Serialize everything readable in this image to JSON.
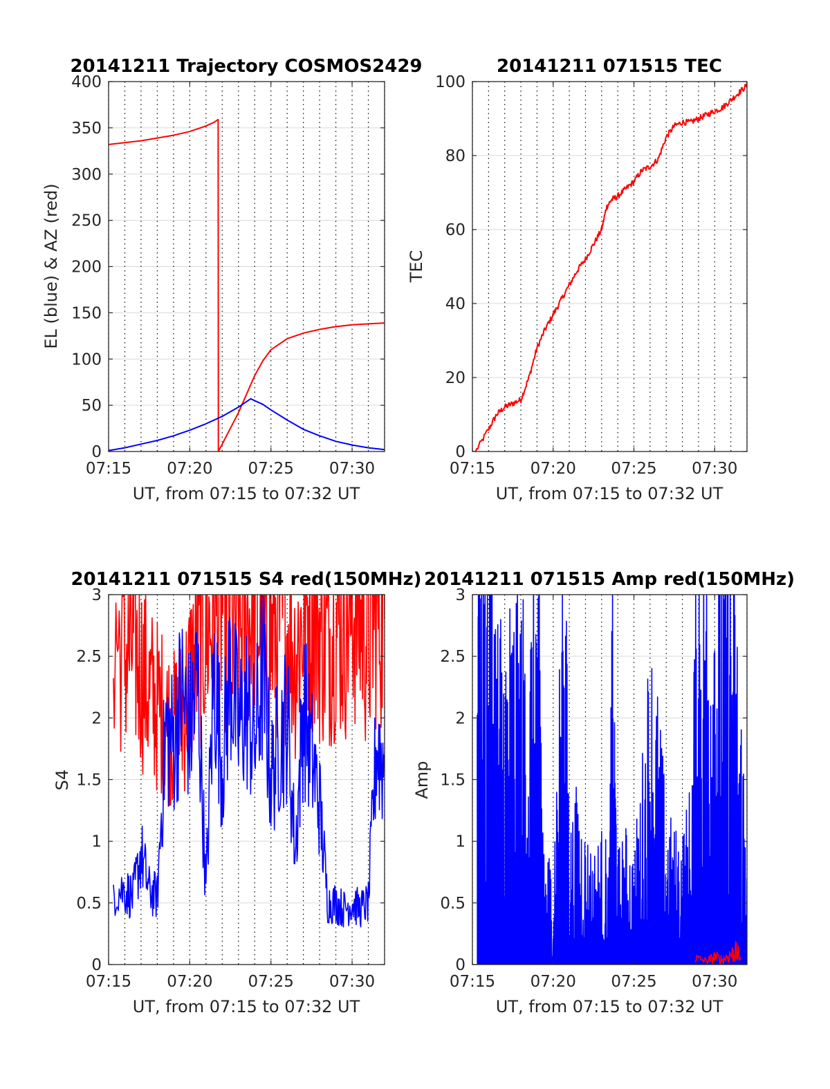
{
  "figure": {
    "background": "#ffffff",
    "grid_color": "#d9d9d9",
    "dotted_grid_color": "#000000"
  },
  "chart_data": [
    {
      "type": "line",
      "title": "20141211 Trajectory COSMOS2429",
      "xlabel": "UT, from 07:15 to 07:32 UT",
      "ylabel": "EL (blue) & AZ (red)",
      "xlim": [
        "07:15",
        "07:32"
      ],
      "ylim": [
        0,
        400
      ],
      "x_ticks": [
        "07:15",
        "07:20",
        "07:25",
        "07:30"
      ],
      "y_ticks": [
        "0",
        "50",
        "100",
        "150",
        "200",
        "250",
        "300",
        "350",
        "400"
      ],
      "grid": true,
      "series": [
        {
          "color": "#ff0000",
          "x": [
            "07:15",
            "07:16",
            "07:17",
            "07:18",
            "07:19",
            "07:20",
            "07:21",
            "07:21.5",
            "07:21.75",
            "07:21.76",
            "07:22",
            "07:22.5",
            "07:23",
            "07:23.5",
            "07:24",
            "07:24.5",
            "07:25",
            "07:26",
            "07:27",
            "07:28",
            "07:29",
            "07:30",
            "07:31",
            "07:32"
          ],
          "y": [
            332,
            334,
            336,
            339,
            342,
            346,
            352,
            356,
            359,
            0,
            8,
            25,
            42,
            62,
            82,
            98,
            110,
            122,
            128,
            132,
            135,
            137,
            138,
            139
          ]
        },
        {
          "color": "#0000ff",
          "x": [
            "07:15",
            "07:16",
            "07:17",
            "07:18",
            "07:19",
            "07:20",
            "07:21",
            "07:22",
            "07:23",
            "07:23.75",
            "07:24.5",
            "07:25",
            "07:26",
            "07:27",
            "07:28",
            "07:29",
            "07:30",
            "07:31",
            "07:32"
          ],
          "y": [
            1,
            4,
            8,
            12,
            17,
            23,
            30,
            38,
            48,
            57,
            51,
            45,
            34,
            24,
            17,
            11,
            7,
            4,
            2
          ]
        }
      ]
    },
    {
      "type": "line",
      "title": "20141211 071515 TEC",
      "xlabel": "UT, from 07:15 to 07:32 UT",
      "ylabel": "TEC",
      "xlim": [
        "07:15",
        "07:32"
      ],
      "ylim": [
        0,
        100
      ],
      "x_ticks": [
        "07:15",
        "07:20",
        "07:25",
        "07:30"
      ],
      "y_ticks": [
        "0",
        "20",
        "40",
        "60",
        "80",
        "100"
      ],
      "grid": true,
      "series": [
        {
          "color": "#ff0000",
          "x": [
            "07:15.2",
            "07:16",
            "07:16.5",
            "07:17",
            "07:17.5",
            "07:18",
            "07:18.5",
            "07:19",
            "07:19.5",
            "07:20",
            "07:20.5",
            "07:21",
            "07:21.5",
            "07:22",
            "07:22.5",
            "07:23",
            "07:23.3",
            "07:23.6",
            "07:24",
            "07:24.5",
            "07:25",
            "07:25.5",
            "07:26",
            "07:26.5",
            "07:27",
            "07:27.5",
            "07:28",
            "07:28.5",
            "07:29",
            "07:29.5",
            "07:30",
            "07:30.5",
            "07:31",
            "07:31.5",
            "07:32"
          ],
          "y": [
            0,
            6,
            10,
            12,
            13,
            14,
            20,
            28,
            33,
            37,
            41,
            45,
            49,
            52,
            56,
            60,
            66,
            68,
            69,
            71,
            73,
            76,
            77,
            79,
            85,
            88,
            89,
            89,
            90,
            91,
            92,
            93,
            95,
            97,
            99
          ]
        }
      ]
    },
    {
      "type": "line",
      "title": "20141211 071515 S4 red(150MHz)",
      "xlabel": "UT, from 07:15 to 07:32 UT",
      "ylabel": "S4",
      "xlim": [
        "07:15",
        "07:32"
      ],
      "ylim": [
        0,
        3
      ],
      "x_ticks": [
        "07:15",
        "07:20",
        "07:25",
        "07:30"
      ],
      "y_ticks": [
        "0",
        "0.5",
        "1",
        "1.5",
        "2",
        "2.5",
        "3"
      ],
      "grid": true,
      "series": [
        {
          "color": "#ff0000",
          "x": [
            "07:15.3",
            "07:16",
            "07:16.5",
            "07:17",
            "07:17.5",
            "07:18",
            "07:18.5",
            "07:19",
            "07:19.5",
            "07:20",
            "07:20.5",
            "07:21",
            "07:21.5",
            "07:22",
            "07:22.5",
            "07:23",
            "07:23.5",
            "07:24",
            "07:24.5",
            "07:25",
            "07:25.5",
            "07:26",
            "07:26.5",
            "07:27",
            "07:27.5",
            "07:28",
            "07:28.5",
            "07:29",
            "07:29.5",
            "07:30",
            "07:30.5",
            "07:31",
            "07:31.5",
            "07:32"
          ],
          "y": [
            2.7,
            2.5,
            2.6,
            2.4,
            2.2,
            2.1,
            2.0,
            1.9,
            2.0,
            2.3,
            2.6,
            2.7,
            2.8,
            2.9,
            2.8,
            2.7,
            2.8,
            2.9,
            2.7,
            2.6,
            2.8,
            2.7,
            2.5,
            2.8,
            2.9,
            2.7,
            2.6,
            2.8,
            2.7,
            2.9,
            2.8,
            2.6,
            2.9,
            2.8
          ]
        },
        {
          "color": "#0000ff",
          "x": [
            "07:15.3",
            "07:16",
            "07:16.5",
            "07:17",
            "07:17.5",
            "07:18",
            "07:18.5",
            "07:19",
            "07:19.5",
            "07:20",
            "07:20.5",
            "07:21",
            "07:21.5",
            "07:22",
            "07:22.5",
            "07:23",
            "07:23.5",
            "07:24",
            "07:24.5",
            "07:25",
            "07:25.5",
            "07:26",
            "07:26.5",
            "07:27",
            "07:27.5",
            "07:28",
            "07:28.5",
            "07:29",
            "07:29.5",
            "07:30",
            "07:30.5",
            "07:31",
            "07:31.5",
            "07:32"
          ],
          "y": [
            0.6,
            0.6,
            0.55,
            0.9,
            0.6,
            0.55,
            1.9,
            1.8,
            2.2,
            1.9,
            2.3,
            0.6,
            2.4,
            1.6,
            2.4,
            1.9,
            2.1,
            1.8,
            2.4,
            1.5,
            1.8,
            2.0,
            0.9,
            2.1,
            1.7,
            1.3,
            0.5,
            0.5,
            0.45,
            0.5,
            0.45,
            0.5,
            1.8,
            1.6
          ]
        }
      ]
    },
    {
      "type": "line",
      "title": "20141211 071515 Amp red(150MHz)",
      "xlabel": "UT, from 07:15 to 07:32 UT",
      "ylabel": "Amp",
      "xlim": [
        "07:15",
        "07:32"
      ],
      "ylim": [
        0,
        3
      ],
      "x_ticks": [
        "07:15",
        "07:20",
        "07:25",
        "07:30"
      ],
      "y_ticks": [
        "0",
        "0.5",
        "1",
        "1.5",
        "2",
        "2.5",
        "3"
      ],
      "grid": true,
      "series": [
        {
          "color": "#0000ff",
          "x": [
            "07:15.3",
            "07:15.5",
            "07:16",
            "07:16.5",
            "07:17",
            "07:17.5",
            "07:18",
            "07:18.5",
            "07:19",
            "07:19.5",
            "07:20",
            "07:20.5",
            "07:20.75",
            "07:21",
            "07:21.5",
            "07:22",
            "07:22.5",
            "07:23",
            "07:23.5",
            "07:23.65",
            "07:24",
            "07:24.5",
            "07:25",
            "07:25.5",
            "07:26",
            "07:26.5",
            "07:27",
            "07:27.5",
            "07:28",
            "07:28.5",
            "07:29",
            "07:29.5",
            "07:30",
            "07:30.5",
            "07:31",
            "07:31.5",
            "07:32"
          ],
          "y": [
            2.5,
            1.8,
            2.4,
            1.7,
            1.6,
            1.7,
            1.7,
            1.5,
            2.1,
            0.5,
            0.5,
            1.6,
            1.9,
            0.6,
            0.8,
            0.6,
            0.5,
            0.6,
            0.5,
            1.8,
            0.5,
            0.6,
            0.5,
            0.9,
            1.5,
            1.2,
            0.7,
            0.6,
            0.6,
            0.8,
            2.2,
            1.9,
            2.2,
            2.1,
            2.2,
            1.4,
            0.7
          ]
        },
        {
          "color": "#ff0000",
          "x": [
            "07:28.8",
            "07:29.5",
            "07:30",
            "07:30.5",
            "07:31",
            "07:31.3",
            "07:31.6"
          ],
          "y": [
            0.05,
            0.03,
            0.06,
            0.04,
            0.08,
            0.1,
            0.06
          ]
        }
      ]
    }
  ]
}
